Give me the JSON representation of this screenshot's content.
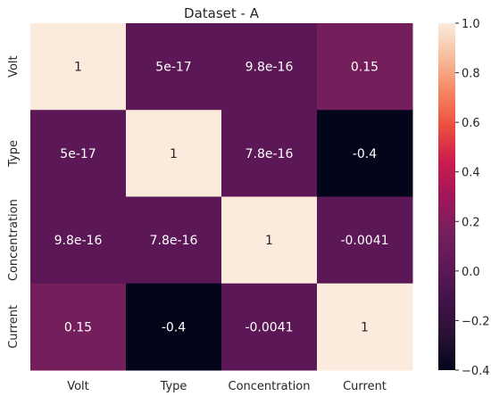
{
  "chart_data": {
    "type": "heatmap",
    "title": "Dataset - A",
    "x_labels": [
      "Volt",
      "Type",
      "Concentration",
      "Current"
    ],
    "y_labels": [
      "Volt",
      "Type",
      "Concentration",
      "Current"
    ],
    "values": [
      [
        1,
        5e-17,
        9.8e-16,
        0.15
      ],
      [
        5e-17,
        1,
        7.8e-16,
        -0.4
      ],
      [
        9.8e-16,
        7.8e-16,
        1,
        -0.0041
      ],
      [
        0.15,
        -0.4,
        -0.0041,
        1
      ]
    ],
    "annotations": [
      [
        "1",
        "5e-17",
        "9.8e-16",
        "0.15"
      ],
      [
        "5e-17",
        "1",
        "7.8e-16",
        "-0.4"
      ],
      [
        "9.8e-16",
        "7.8e-16",
        "1",
        "-0.0041"
      ],
      [
        "0.15",
        "-0.4",
        "-0.0041",
        "1"
      ]
    ],
    "colorbar": {
      "vmin": -0.4,
      "vmax": 1.0,
      "ticks": [
        -0.4,
        -0.2,
        0.0,
        0.2,
        0.4,
        0.6,
        0.8,
        1.0
      ],
      "tick_labels": [
        "−0.4",
        "−0.2",
        "0.0",
        "0.2",
        "0.4",
        "0.6",
        "0.8",
        "1.0"
      ],
      "colormap": "rocket"
    },
    "xlabel": "",
    "ylabel": "",
    "grid": false
  }
}
